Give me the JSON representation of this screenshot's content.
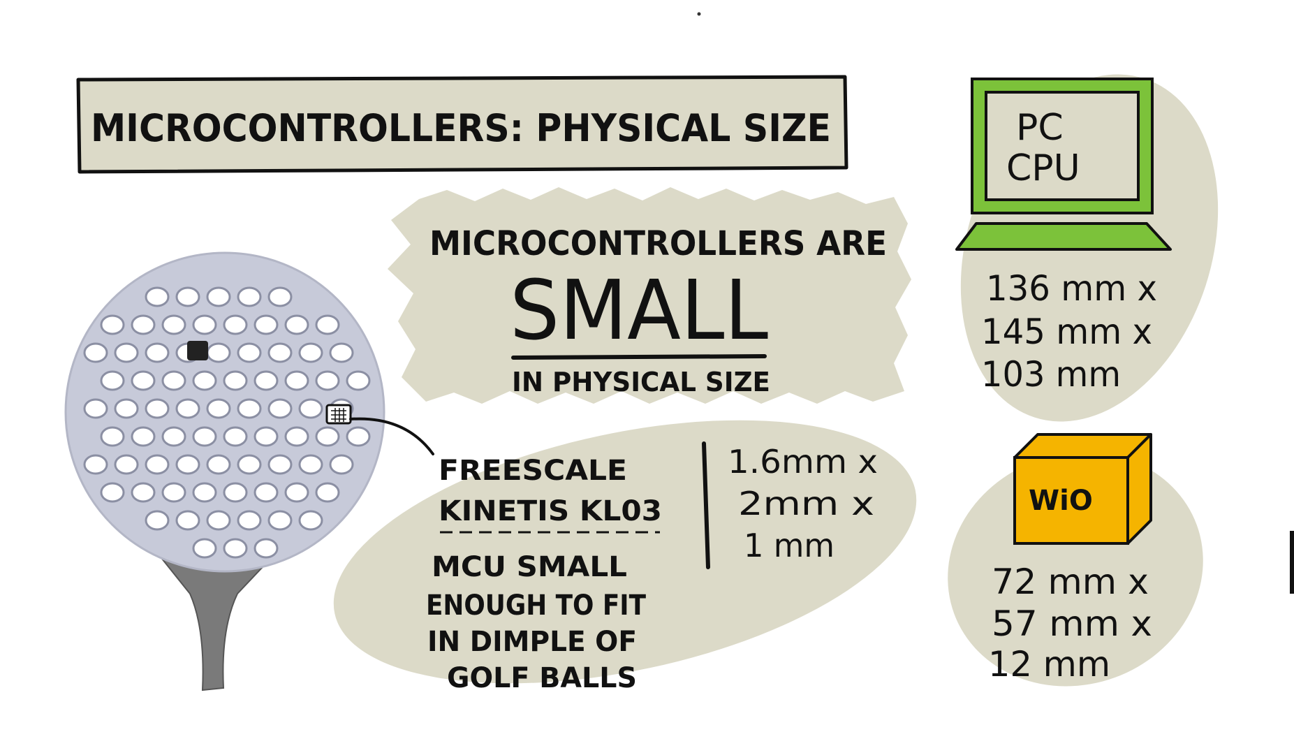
{
  "title": "MICROCONTROLLERS: PHYSICAL SIZE",
  "colors": {
    "blob": "#dcdac8",
    "ink": "#111111",
    "laptop_green": "#7cc23a",
    "box_orange": "#f5b400",
    "golf_ball": "#c7cad9",
    "tee": "#7a7a7a"
  },
  "center_callout": {
    "line1": "MICROCONTROLLERS ARE",
    "line2": "SMALL",
    "line3": "IN PHYSICAL SIZE"
  },
  "pc": {
    "label_line1": "PC",
    "label_line2": "CPU",
    "dims": [
      "136 mm x",
      "145 mm x",
      "103 mm"
    ]
  },
  "wio": {
    "label": "WiO",
    "dims": [
      "72 mm x",
      "57 mm x",
      "12 mm"
    ]
  },
  "mcu": {
    "name_line1": "FREESCALE",
    "name_line2": "KINETIS KL03",
    "desc": [
      "MCU SMALL",
      "ENOUGH TO FIT",
      "IN DIMPLE OF",
      "GOLF BALLS"
    ],
    "dims": [
      "1.6mm x",
      "2mm x",
      "1 mm"
    ]
  },
  "golf_ball_icon": "golf-ball-on-tee",
  "laptop_icon": "laptop",
  "box_icon": "cube"
}
